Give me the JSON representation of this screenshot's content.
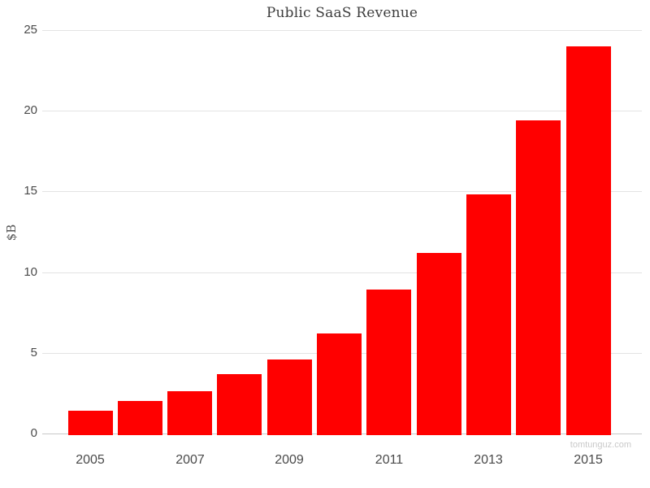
{
  "title": "Public SaaS Revenue",
  "watermark": "tomtunguz.com",
  "chart_data": {
    "type": "bar",
    "title": "Public SaaS Revenue",
    "xlabel": "",
    "ylabel": "$B",
    "categories": [
      "2005",
      "2006",
      "2007",
      "2008",
      "2009",
      "2010",
      "2011",
      "2012",
      "2013",
      "2014",
      "2015"
    ],
    "values": [
      1.4,
      2.0,
      2.6,
      3.7,
      4.6,
      6.2,
      8.9,
      11.2,
      14.8,
      19.4,
      24.0
    ],
    "ylim": [
      0,
      25
    ],
    "yticks": [
      0,
      5,
      10,
      15,
      20,
      25
    ],
    "xtick_labels": [
      "2005",
      "2007",
      "2009",
      "2011",
      "2013",
      "2015"
    ],
    "xtick_indices": [
      0,
      2,
      4,
      6,
      8,
      10
    ],
    "bar_color": "#ff0000",
    "grid": true,
    "gridline_color": "#e3e3e3",
    "zero_line_color": "#c9c9c9",
    "legend": "none"
  }
}
